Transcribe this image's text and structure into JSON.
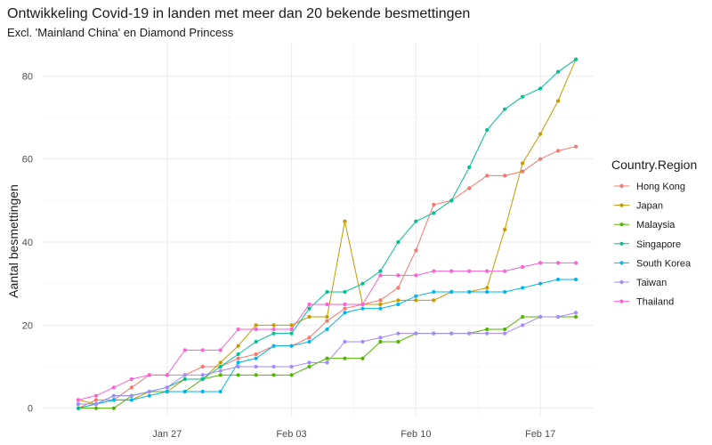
{
  "chart_data": {
    "type": "line",
    "title": "Ontwikkeling Covid-19 in landen met meer dan 20 bekende besmettingen",
    "subtitle": "Excl. 'Mainland China' en Diamond Princess",
    "xlabel": "",
    "ylabel": "Aantal besmettingen",
    "x_type": "date",
    "x": [
      "2020-01-22",
      "2020-01-23",
      "2020-01-24",
      "2020-01-25",
      "2020-01-26",
      "2020-01-27",
      "2020-01-28",
      "2020-01-29",
      "2020-01-30",
      "2020-01-31",
      "2020-02-01",
      "2020-02-02",
      "2020-02-03",
      "2020-02-04",
      "2020-02-05",
      "2020-02-06",
      "2020-02-07",
      "2020-02-08",
      "2020-02-09",
      "2020-02-10",
      "2020-02-11",
      "2020-02-12",
      "2020-02-13",
      "2020-02-14",
      "2020-02-15",
      "2020-02-16",
      "2020-02-17",
      "2020-02-18",
      "2020-02-19"
    ],
    "x_ticks": [
      {
        "date": "2020-01-27",
        "label": "Jan 27"
      },
      {
        "date": "2020-02-03",
        "label": "Feb 03"
      },
      {
        "date": "2020-02-10",
        "label": "Feb 10"
      },
      {
        "date": "2020-02-17",
        "label": "Feb 17"
      }
    ],
    "xlim": [
      "2020-01-20",
      "2020-02-20"
    ],
    "y_ticks": [
      0,
      20,
      40,
      60,
      80
    ],
    "ylim": [
      -2,
      88
    ],
    "grid": true,
    "legend_title": "Country.Region",
    "legend_position": "right",
    "series": [
      {
        "name": "Hong Kong",
        "color": "#F8766D",
        "values": [
          0,
          2,
          2,
          5,
          8,
          8,
          8,
          10,
          10,
          12,
          13,
          15,
          15,
          17,
          21,
          24,
          25,
          26,
          29,
          38,
          49,
          50,
          53,
          56,
          56,
          57,
          60,
          62,
          63
        ]
      },
      {
        "name": "Japan",
        "color": "#C49A00",
        "values": [
          2,
          1,
          2,
          2,
          4,
          4,
          7,
          7,
          11,
          15,
          20,
          20,
          20,
          22,
          22,
          45,
          25,
          25,
          26,
          26,
          26,
          28,
          28,
          29,
          43,
          59,
          66,
          74,
          84
        ]
      },
      {
        "name": "Malaysia",
        "color": "#53B400",
        "values": [
          0,
          0,
          0,
          3,
          4,
          4,
          4,
          7,
          8,
          8,
          8,
          8,
          8,
          10,
          12,
          12,
          12,
          16,
          16,
          18,
          18,
          18,
          18,
          19,
          19,
          22,
          22,
          22,
          22
        ]
      },
      {
        "name": "Singapore",
        "color": "#00C094",
        "values": [
          0,
          1,
          3,
          3,
          4,
          5,
          7,
          7,
          10,
          13,
          16,
          18,
          18,
          24,
          28,
          28,
          30,
          33,
          40,
          45,
          47,
          50,
          58,
          67,
          72,
          75,
          77,
          81,
          84
        ]
      },
      {
        "name": "South Korea",
        "color": "#00B6EB",
        "values": [
          1,
          1,
          2,
          2,
          3,
          4,
          4,
          4,
          4,
          11,
          12,
          15,
          15,
          16,
          19,
          23,
          24,
          24,
          25,
          27,
          28,
          28,
          28,
          28,
          28,
          29,
          30,
          31,
          31
        ]
      },
      {
        "name": "Taiwan",
        "color": "#A58AFF",
        "values": [
          1,
          1,
          3,
          3,
          4,
          5,
          8,
          8,
          9,
          10,
          10,
          10,
          10,
          11,
          11,
          16,
          16,
          17,
          18,
          18,
          18,
          18,
          18,
          18,
          18,
          20,
          22,
          22,
          23
        ]
      },
      {
        "name": "Thailand",
        "color": "#FB61D7",
        "values": [
          2,
          3,
          5,
          7,
          8,
          8,
          14,
          14,
          14,
          19,
          19,
          19,
          19,
          25,
          25,
          25,
          25,
          32,
          32,
          32,
          33,
          33,
          33,
          33,
          33,
          34,
          35,
          35,
          35
        ]
      }
    ]
  }
}
